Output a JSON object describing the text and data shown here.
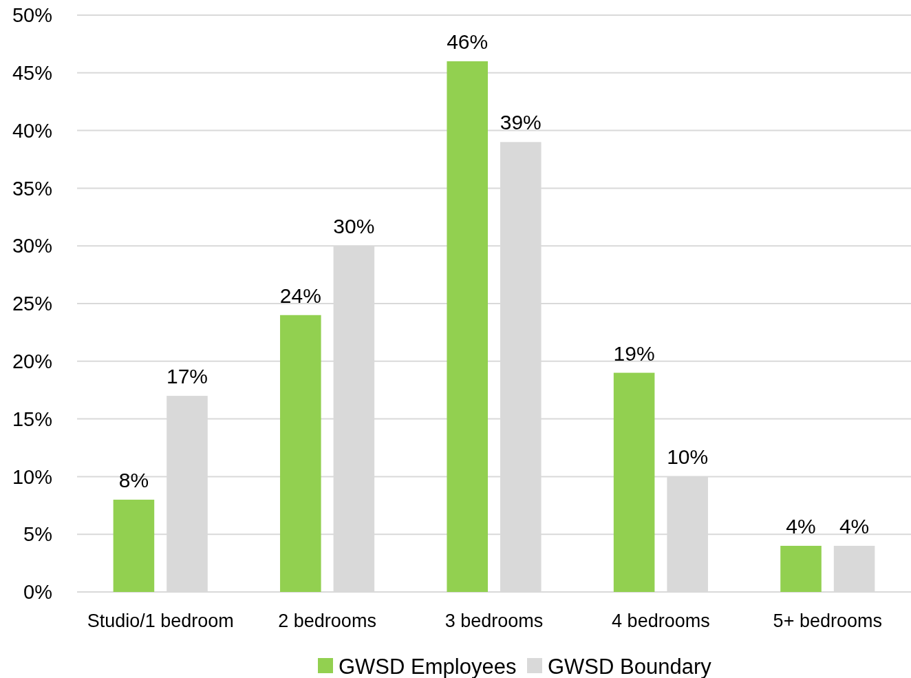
{
  "chart_data": {
    "type": "bar",
    "categories": [
      "Studio/1 bedroom",
      "2 bedrooms",
      "3 bedrooms",
      "4 bedrooms",
      "5+ bedrooms"
    ],
    "series": [
      {
        "name": "GWSD Employees",
        "color": "#92d050",
        "values": [
          8,
          24,
          46,
          19,
          4
        ],
        "value_labels": [
          "8%",
          "24%",
          "46%",
          "19%",
          "4%"
        ]
      },
      {
        "name": "GWSD Boundary",
        "color": "#d9d9d9",
        "values": [
          17,
          30,
          39,
          10,
          4
        ],
        "value_labels": [
          "17%",
          "30%",
          "39%",
          "10%",
          "4%"
        ]
      }
    ],
    "ylim": [
      0,
      50
    ],
    "yticks": [
      {
        "value": 0,
        "label": "0%"
      },
      {
        "value": 5,
        "label": "5%"
      },
      {
        "value": 10,
        "label": "10%"
      },
      {
        "value": 15,
        "label": "15%"
      },
      {
        "value": 20,
        "label": "20%"
      },
      {
        "value": 25,
        "label": "25%"
      },
      {
        "value": 30,
        "label": "30%"
      },
      {
        "value": 35,
        "label": "35%"
      },
      {
        "value": 40,
        "label": "40%"
      },
      {
        "value": 45,
        "label": "45%"
      },
      {
        "value": 50,
        "label": "50%"
      }
    ],
    "grid": "y",
    "legend": "bottom"
  }
}
